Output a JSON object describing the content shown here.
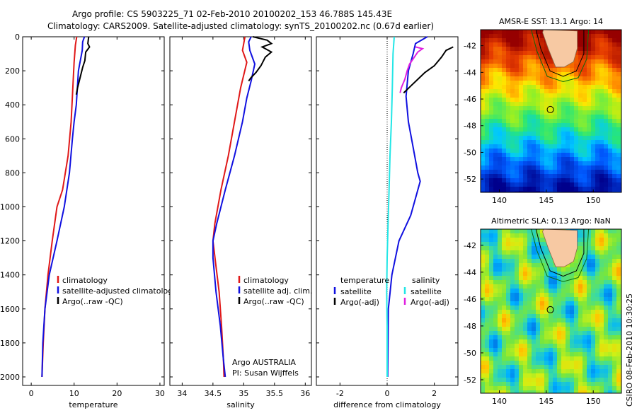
{
  "header": {
    "title_line1": "Argo profile: CS 5903225_71 02-Feb-2010 20100202_153 46.788S 145.43E",
    "title_line2": "Climatology: CARS2009. Satellite-adjusted climatology: synTS_20100202.nc (0.67d earlier)"
  },
  "colors": {
    "climatology": "#e01818",
    "satellite": "#1010e0",
    "argo": "#000000",
    "temperature_diff_satellite": "#22e6e6",
    "salinity_diff_argo": "#e020e0"
  },
  "chart_data": [
    {
      "type": "line",
      "id": "temperature_profile",
      "xlabel": "temperature",
      "ylabel": "",
      "xlim": [
        -2,
        31
      ],
      "ylim": [
        2050,
        0
      ],
      "xticks": [
        "0",
        "10",
        "20",
        "30"
      ],
      "xtick_values": [
        0,
        10,
        20,
        30
      ],
      "yticks": [
        "0",
        "200",
        "400",
        "600",
        "800",
        "1000",
        "1200",
        "1400",
        "1600",
        "1800",
        "2000"
      ],
      "ytick_values": [
        0,
        200,
        400,
        600,
        800,
        1000,
        1200,
        1400,
        1600,
        1800,
        2000
      ],
      "legend": [
        "climatology",
        "satellite-adjusted climatology",
        "Argo(..raw -QC)"
      ],
      "series": [
        {
          "name": "climatology",
          "color_key": "climatology",
          "points": [
            [
              10.6,
              0
            ],
            [
              10.3,
              50
            ],
            [
              10.0,
              150
            ],
            [
              9.7,
              300
            ],
            [
              9.3,
              500
            ],
            [
              8.6,
              700
            ],
            [
              7.3,
              900
            ],
            [
              6.0,
              1000
            ],
            [
              4.9,
              1200
            ],
            [
              3.9,
              1400
            ],
            [
              3.2,
              1600
            ],
            [
              2.8,
              1800
            ],
            [
              2.5,
              2000
            ]
          ]
        },
        {
          "name": "satellite-adjusted climatology",
          "color_key": "satellite",
          "points": [
            [
              12.4,
              0
            ],
            [
              12.0,
              30
            ],
            [
              11.9,
              80
            ],
            [
              11.0,
              200
            ],
            [
              10.5,
              400
            ],
            [
              10.0,
              500
            ],
            [
              9.6,
              600
            ],
            [
              8.9,
              800
            ],
            [
              7.7,
              1000
            ],
            [
              6.0,
              1200
            ],
            [
              4.2,
              1400
            ],
            [
              3.2,
              1600
            ],
            [
              2.7,
              1800
            ],
            [
              2.5,
              2000
            ]
          ]
        },
        {
          "name": "Argo(..raw -QC)",
          "color_key": "argo",
          "points": [
            [
              13.4,
              0
            ],
            [
              13.2,
              40
            ],
            [
              13.6,
              60
            ],
            [
              12.7,
              90
            ],
            [
              12.5,
              140
            ],
            [
              12.0,
              180
            ],
            [
              11.6,
              220
            ],
            [
              11.2,
              260
            ],
            [
              10.8,
              300
            ],
            [
              10.5,
              340
            ]
          ]
        }
      ]
    },
    {
      "type": "line",
      "id": "salinity_profile",
      "xlabel": "salinity",
      "xlim": [
        33.8,
        36.1
      ],
      "ylim": [
        2050,
        0
      ],
      "xticks": [
        "34",
        "34.5",
        "35",
        "35.5",
        "36"
      ],
      "xtick_values": [
        34,
        34.5,
        35,
        35.5,
        36
      ],
      "legend": [
        "climatology",
        "satellite adj. clim.",
        "Argo(..raw -QC)"
      ],
      "annotation_line1": "Argo AUSTRALIA",
      "annotation_line2": "PI: Susan Wijffels",
      "series": [
        {
          "name": "climatology",
          "color_key": "climatology",
          "points": [
            [
              35.02,
              0
            ],
            [
              34.98,
              80
            ],
            [
              35.05,
              150
            ],
            [
              34.95,
              300
            ],
            [
              34.85,
              500
            ],
            [
              34.75,
              700
            ],
            [
              34.63,
              900
            ],
            [
              34.53,
              1100
            ],
            [
              34.5,
              1200
            ],
            [
              34.55,
              1350
            ],
            [
              34.6,
              1500
            ],
            [
              34.64,
              1700
            ],
            [
              34.67,
              1900
            ],
            [
              34.68,
              2000
            ]
          ]
        },
        {
          "name": "satellite adj. clim.",
          "color_key": "satellite",
          "points": [
            [
              35.12,
              0
            ],
            [
              35.08,
              30
            ],
            [
              35.1,
              80
            ],
            [
              35.18,
              160
            ],
            [
              35.12,
              260
            ],
            [
              35.05,
              360
            ],
            [
              34.98,
              500
            ],
            [
              34.85,
              700
            ],
            [
              34.7,
              900
            ],
            [
              34.56,
              1100
            ],
            [
              34.5,
              1200
            ],
            [
              34.5,
              1300
            ],
            [
              34.55,
              1500
            ],
            [
              34.62,
              1700
            ],
            [
              34.67,
              1900
            ],
            [
              34.7,
              2000
            ]
          ]
        },
        {
          "name": "Argo(..raw -QC)",
          "color_key": "argo",
          "points": [
            [
              35.15,
              0
            ],
            [
              35.38,
              20
            ],
            [
              35.45,
              40
            ],
            [
              35.3,
              60
            ],
            [
              35.45,
              90
            ],
            [
              35.35,
              120
            ],
            [
              35.28,
              170
            ],
            [
              35.2,
              210
            ],
            [
              35.12,
              240
            ],
            [
              35.08,
              260
            ]
          ]
        }
      ]
    },
    {
      "type": "line",
      "id": "difference_profile",
      "xlabel": "difference from climatology",
      "xlim": [
        -3,
        3
      ],
      "ylim": [
        2050,
        0
      ],
      "xticks": [
        "-2",
        "0",
        "2"
      ],
      "xtick_values": [
        -2,
        0,
        2
      ],
      "legend_title_left": "temperature",
      "legend_title_right": "salinity",
      "legend_left": [
        "satellite",
        "Argo(-adj)"
      ],
      "legend_right": [
        "satellite",
        "Argo(-adj)"
      ],
      "series": [
        {
          "name": "temperature satellite",
          "color_key": "satellite",
          "points": [
            [
              1.7,
              0
            ],
            [
              1.2,
              40
            ],
            [
              1.1,
              100
            ],
            [
              0.9,
              200
            ],
            [
              0.8,
              350
            ],
            [
              0.9,
              500
            ],
            [
              1.1,
              650
            ],
            [
              1.3,
              800
            ],
            [
              1.4,
              850
            ],
            [
              1.2,
              950
            ],
            [
              1.0,
              1050
            ],
            [
              0.5,
              1200
            ],
            [
              0.2,
              1400
            ],
            [
              0.05,
              1600
            ],
            [
              0.02,
              2000
            ]
          ]
        },
        {
          "name": "temperature Argo(-adj)",
          "color_key": "argo",
          "points": [
            [
              2.8,
              60
            ],
            [
              2.5,
              80
            ],
            [
              2.3,
              120
            ],
            [
              2.0,
              170
            ],
            [
              1.6,
              210
            ],
            [
              1.3,
              250
            ],
            [
              1.0,
              290
            ],
            [
              0.7,
              330
            ]
          ]
        },
        {
          "name": "salinity satellite",
          "color_key": "temperature_diff_satellite",
          "points": [
            [
              0.3,
              0
            ],
            [
              0.25,
              100
            ],
            [
              0.22,
              300
            ],
            [
              0.18,
              500
            ],
            [
              0.12,
              700
            ],
            [
              0.08,
              900
            ],
            [
              0.04,
              1100
            ],
            [
              0.0,
              1300
            ],
            [
              -0.02,
              1500
            ],
            [
              0.0,
              1700
            ],
            [
              0.0,
              2000
            ]
          ]
        },
        {
          "name": "salinity Argo(-adj)",
          "color_key": "salinity_diff_argo",
          "points": [
            [
              1.2,
              60
            ],
            [
              1.5,
              70
            ],
            [
              1.3,
              90
            ],
            [
              1.1,
              130
            ],
            [
              0.95,
              160
            ],
            [
              0.85,
              200
            ],
            [
              0.75,
              250
            ],
            [
              0.6,
              300
            ],
            [
              0.55,
              330
            ]
          ]
        }
      ]
    },
    {
      "type": "heatmap",
      "id": "sst_map",
      "title": "AMSR-E SST: 13.1 Argo: 14",
      "xticks": [
        "140",
        "145",
        "150"
      ],
      "xtick_values": [
        140,
        145,
        150
      ],
      "yticks": [
        "-42",
        "-44",
        "-46",
        "-48",
        "-50",
        "-52"
      ],
      "ytick_values": [
        -42,
        -44,
        -46,
        -48,
        -50,
        -52
      ],
      "xlim": [
        138,
        153
      ],
      "ylim": [
        -53,
        -40.8
      ],
      "argo_position": [
        145.43,
        -46.79
      ]
    },
    {
      "type": "heatmap",
      "id": "sla_map",
      "title": "Altimetric SLA: 0.13 Argo: NaN",
      "xticks": [
        "140",
        "145",
        "150"
      ],
      "xtick_values": [
        140,
        145,
        150
      ],
      "yticks": [
        "-42",
        "-44",
        "-46",
        "-48",
        "-50",
        "-52"
      ],
      "ytick_values": [
        -42,
        -44,
        -46,
        -48,
        -50,
        -52
      ],
      "xlim": [
        138,
        153
      ],
      "ylim": [
        -53,
        -40.8
      ],
      "argo_position": [
        145.43,
        -46.79
      ]
    }
  ],
  "footer": {
    "stamp": "CSIRO 08-Feb-2010 10:30:25"
  }
}
